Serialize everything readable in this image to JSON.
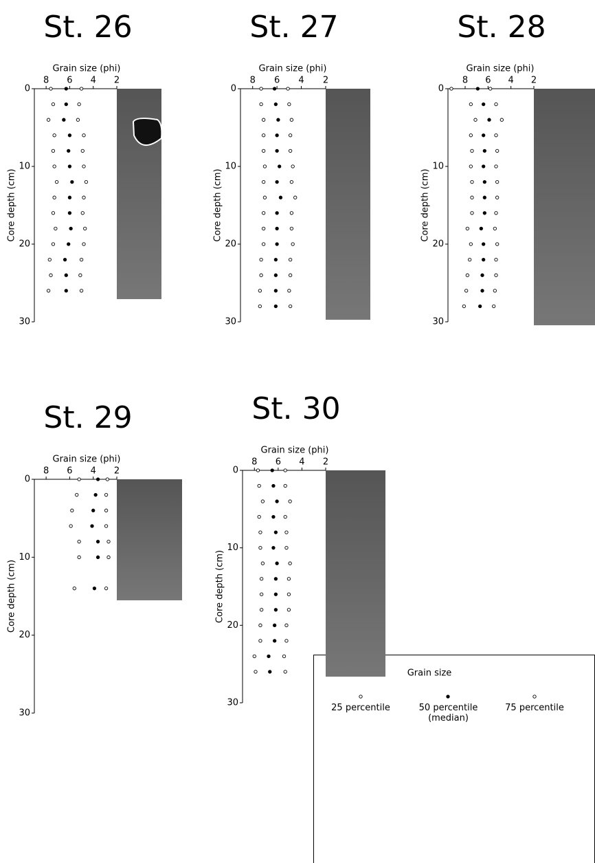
{
  "chart_data": [
    {
      "type": "scatter",
      "title": "St. 26",
      "xlabel": "Grain size (phi)",
      "ylabel": "Core depth (cm)",
      "xlim": [
        9,
        2
      ],
      "ylim": [
        30,
        0
      ],
      "xticks": [
        8,
        6,
        4,
        2
      ],
      "yticks": [
        0,
        10,
        20,
        30
      ],
      "y": [
        0,
        2,
        4,
        6,
        8,
        10,
        12,
        14,
        16,
        18,
        20,
        22,
        24,
        26
      ],
      "series": [
        {
          "name": "25 percentile",
          "color": "#000000",
          "filled": false,
          "x": [
            7.6,
            7.4,
            7.8,
            7.3,
            7.4,
            7.3,
            7.1,
            7.3,
            7.4,
            7.2,
            7.4,
            7.7,
            7.6,
            7.8
          ]
        },
        {
          "name": "50 percentile (median)",
          "color": "#000000",
          "filled": true,
          "x": [
            6.3,
            6.3,
            6.5,
            6.0,
            6.1,
            6.0,
            5.8,
            6.0,
            6.0,
            5.9,
            6.1,
            6.4,
            6.3,
            6.3
          ]
        },
        {
          "name": "75 percentile",
          "color": "#000000",
          "filled": false,
          "x": [
            5.0,
            5.2,
            5.3,
            4.8,
            4.9,
            4.8,
            4.6,
            4.8,
            4.9,
            4.7,
            4.8,
            5.0,
            5.1,
            5.0
          ]
        }
      ]
    },
    {
      "type": "scatter",
      "title": "St. 27",
      "xlabel": "Grain size (phi)",
      "ylabel": "Core depth (cm)",
      "xlim": [
        9,
        2
      ],
      "ylim": [
        30,
        0
      ],
      "xticks": [
        8,
        6,
        4,
        2
      ],
      "yticks": [
        0,
        10,
        20,
        30
      ],
      "y": [
        0,
        2,
        4,
        6,
        8,
        10,
        12,
        14,
        16,
        18,
        20,
        22,
        24,
        26,
        28
      ],
      "series": [
        {
          "name": "25 percentile",
          "color": "#000000",
          "filled": false,
          "x": [
            7.3,
            7.3,
            7.1,
            7.1,
            7.1,
            7.0,
            7.1,
            7.0,
            7.1,
            7.1,
            7.1,
            7.3,
            7.3,
            7.4,
            7.4
          ]
        },
        {
          "name": "50 percentile (median)",
          "color": "#000000",
          "filled": true,
          "x": [
            6.2,
            6.1,
            5.9,
            6.0,
            6.0,
            5.8,
            6.0,
            5.7,
            6.0,
            6.0,
            6.0,
            6.1,
            6.1,
            6.1,
            6.1
          ]
        },
        {
          "name": "75 percentile",
          "color": "#000000",
          "filled": false,
          "x": [
            5.1,
            5.0,
            4.8,
            4.9,
            4.9,
            4.7,
            4.8,
            4.5,
            4.8,
            4.8,
            4.7,
            4.9,
            4.9,
            5.0,
            4.9
          ]
        }
      ]
    },
    {
      "type": "scatter",
      "title": "St. 28",
      "xlabel": "Grain size (phi)",
      "ylabel": "Core depth (cm)",
      "xlim": [
        9.5,
        2
      ],
      "ylim": [
        30,
        0
      ],
      "xticks": [
        8,
        6,
        4,
        2
      ],
      "yticks": [
        0,
        10,
        20,
        30
      ],
      "y": [
        0,
        2,
        4,
        6,
        8,
        10,
        12,
        14,
        16,
        18,
        20,
        22,
        24,
        26,
        28
      ],
      "series": [
        {
          "name": "25 percentile",
          "color": "#000000",
          "filled": false,
          "x": [
            9.2,
            7.5,
            7.1,
            7.5,
            7.4,
            7.5,
            7.4,
            7.4,
            7.4,
            7.8,
            7.5,
            7.6,
            7.8,
            7.9,
            8.1
          ]
        },
        {
          "name": "50 percentile (median)",
          "color": "#000000",
          "filled": true,
          "x": [
            6.9,
            6.4,
            5.9,
            6.4,
            6.3,
            6.4,
            6.3,
            6.3,
            6.3,
            6.6,
            6.4,
            6.4,
            6.5,
            6.5,
            6.7
          ]
        },
        {
          "name": "75 percentile",
          "color": "#000000",
          "filled": false,
          "x": [
            5.8,
            5.3,
            4.8,
            5.3,
            5.2,
            5.3,
            5.2,
            5.2,
            5.3,
            5.4,
            5.2,
            5.3,
            5.3,
            5.4,
            5.5
          ]
        }
      ]
    },
    {
      "type": "scatter",
      "title": "St. 29",
      "xlabel": "Grain size (phi)",
      "ylabel": "Core depth (cm)",
      "xlim": [
        9,
        2
      ],
      "ylim": [
        30,
        0
      ],
      "xticks": [
        8,
        6,
        4,
        2
      ],
      "yticks": [
        0,
        10,
        20,
        30
      ],
      "y": [
        0,
        2,
        4,
        6,
        8,
        10,
        14
      ],
      "series": [
        {
          "name": "25 percentile",
          "color": "#000000",
          "filled": false,
          "x": [
            5.2,
            5.4,
            5.8,
            5.9,
            5.2,
            5.2,
            5.6
          ]
        },
        {
          "name": "50 percentile (median)",
          "color": "#000000",
          "filled": true,
          "x": [
            3.6,
            3.8,
            4.0,
            4.1,
            3.6,
            3.6,
            3.9
          ]
        },
        {
          "name": "75 percentile",
          "color": "#000000",
          "filled": false,
          "x": [
            2.8,
            2.9,
            2.9,
            2.9,
            2.7,
            2.7,
            2.9
          ]
        }
      ]
    },
    {
      "type": "scatter",
      "title": "St. 30",
      "xlabel": "Grain size (phi)",
      "ylabel": "Core depth (cm)",
      "xlim": [
        9,
        2
      ],
      "ylim": [
        30,
        0
      ],
      "xticks": [
        8,
        6,
        4,
        2
      ],
      "yticks": [
        0,
        10,
        20,
        30
      ],
      "y": [
        0,
        2,
        4,
        6,
        8,
        10,
        12,
        14,
        16,
        18,
        20,
        22,
        24,
        26
      ],
      "series": [
        {
          "name": "25 percentile",
          "color": "#000000",
          "filled": false,
          "x": [
            7.7,
            7.6,
            7.3,
            7.6,
            7.5,
            7.5,
            7.3,
            7.4,
            7.4,
            7.4,
            7.5,
            7.5,
            8.0,
            7.9
          ]
        },
        {
          "name": "50 percentile (median)",
          "color": "#000000",
          "filled": true,
          "x": [
            6.5,
            6.4,
            6.1,
            6.4,
            6.2,
            6.4,
            6.1,
            6.2,
            6.2,
            6.2,
            6.3,
            6.3,
            6.8,
            6.7
          ]
        },
        {
          "name": "75 percentile",
          "color": "#000000",
          "filled": false,
          "x": [
            5.4,
            5.4,
            5.0,
            5.4,
            5.3,
            5.3,
            5.0,
            5.1,
            5.1,
            5.1,
            5.3,
            5.3,
            5.5,
            5.4
          ]
        }
      ]
    }
  ],
  "legend": {
    "title": "Grain size"
  }
}
